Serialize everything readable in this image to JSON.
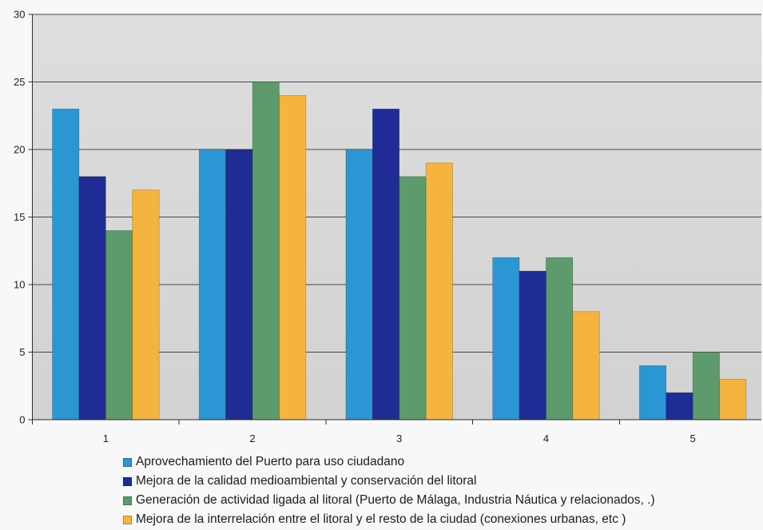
{
  "chart_data": {
    "type": "bar",
    "categories": [
      "1",
      "2",
      "3",
      "4",
      "5"
    ],
    "series": [
      {
        "name": "Aprovechamiento del Puerto para uso ciudadano",
        "color": "#2a96d4",
        "values": [
          23,
          20,
          20,
          12,
          4
        ]
      },
      {
        "name": "Mejora de la calidad medioambiental y conservación del litoral",
        "color": "#1f2c96",
        "values": [
          18,
          20,
          23,
          11,
          2
        ]
      },
      {
        "name": "Generación de actividad ligada al litoral (Puerto de Málaga, Industria Náutica y relacionados, .)",
        "color": "#5e9b6c",
        "values": [
          14,
          25,
          18,
          12,
          5
        ]
      },
      {
        "name": "Mejora de la interrelación entre el litoral y el resto de la ciudad (conexiones urbanas, etc )",
        "color": "#f5b43d",
        "values": [
          17,
          24,
          19,
          8,
          3
        ]
      }
    ],
    "ylim": [
      0,
      30
    ],
    "y_ticks": [
      0,
      5,
      10,
      15,
      20,
      25,
      30
    ],
    "grid": true,
    "legend_position": "bottom"
  }
}
